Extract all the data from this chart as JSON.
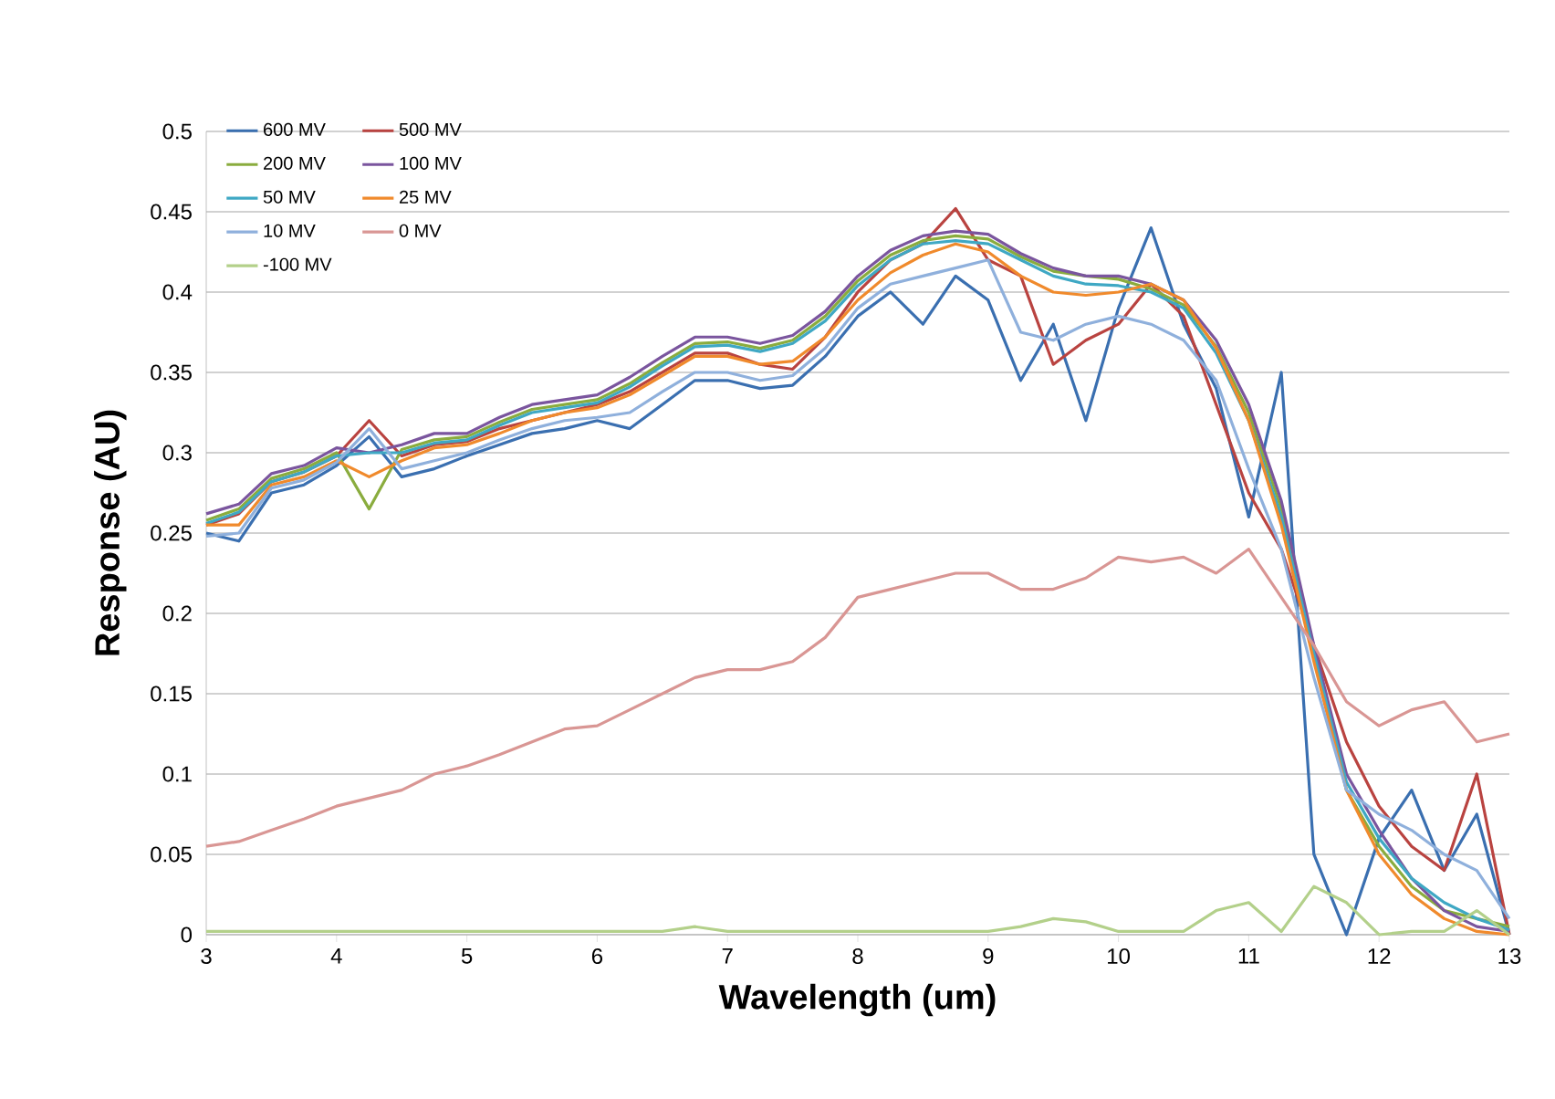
{
  "chart_data": {
    "type": "line",
    "xlabel": "Wavelength (um)",
    "ylabel": "Response (AU)",
    "x": [
      3.0,
      3.25,
      3.5,
      3.75,
      4.0,
      4.25,
      4.5,
      4.75,
      5.0,
      5.25,
      5.5,
      5.75,
      6.0,
      6.25,
      6.5,
      6.75,
      7.0,
      7.25,
      7.5,
      7.75,
      8.0,
      8.25,
      8.5,
      8.75,
      9.0,
      9.25,
      9.5,
      9.75,
      10.0,
      10.25,
      10.5,
      10.75,
      11.0,
      11.25,
      11.5,
      11.75,
      12.0,
      12.25,
      12.5,
      12.75,
      13.0
    ],
    "xlim": [
      3,
      13
    ],
    "xticks": [
      3,
      4,
      5,
      6,
      7,
      8,
      9,
      10,
      11,
      12,
      13
    ],
    "ylim": [
      0,
      0.5
    ],
    "yticks": [
      0,
      0.05,
      0.1,
      0.15,
      0.2,
      0.25,
      0.3,
      0.35,
      0.4,
      0.45,
      0.5
    ],
    "grid": "y",
    "legend": "top left",
    "marker": "none",
    "line_style": "solid",
    "series": [
      {
        "name": "600 MV",
        "color": "#3a6fb0",
        "values": [
          0.25,
          0.245,
          0.275,
          0.28,
          0.292,
          0.31,
          0.285,
          0.29,
          0.298,
          0.305,
          0.312,
          0.315,
          0.32,
          0.315,
          0.33,
          0.345,
          0.345,
          0.34,
          0.342,
          0.36,
          0.385,
          0.4,
          0.38,
          0.41,
          0.395,
          0.345,
          0.38,
          0.32,
          0.39,
          0.44,
          0.38,
          0.34,
          0.26,
          0.35,
          0.05,
          0.0,
          0.06,
          0.09,
          0.04,
          0.075,
          0.0
        ]
      },
      {
        "name": "500 MV",
        "color": "#b94340",
        "values": [
          0.255,
          0.262,
          0.282,
          0.288,
          0.298,
          0.32,
          0.298,
          0.305,
          0.307,
          0.315,
          0.32,
          0.325,
          0.33,
          0.338,
          0.35,
          0.362,
          0.362,
          0.355,
          0.352,
          0.372,
          0.4,
          0.42,
          0.43,
          0.452,
          0.42,
          0.41,
          0.355,
          0.37,
          0.38,
          0.405,
          0.385,
          0.33,
          0.275,
          0.24,
          0.18,
          0.12,
          0.08,
          0.055,
          0.04,
          0.1,
          0.0
        ]
      },
      {
        "name": "200 MV",
        "color": "#8aac3e",
        "values": [
          0.258,
          0.265,
          0.284,
          0.29,
          0.3,
          0.265,
          0.302,
          0.308,
          0.31,
          0.319,
          0.327,
          0.33,
          0.333,
          0.343,
          0.356,
          0.368,
          0.369,
          0.365,
          0.37,
          0.385,
          0.407,
          0.423,
          0.432,
          0.435,
          0.433,
          0.422,
          0.413,
          0.41,
          0.408,
          0.402,
          0.392,
          0.366,
          0.325,
          0.265,
          0.175,
          0.09,
          0.055,
          0.03,
          0.015,
          0.01,
          0.005
        ]
      },
      {
        "name": "100 MV",
        "color": "#7a559e",
        "values": [
          0.262,
          0.268,
          0.287,
          0.292,
          0.303,
          0.3,
          0.305,
          0.312,
          0.312,
          0.322,
          0.33,
          0.333,
          0.336,
          0.347,
          0.36,
          0.372,
          0.372,
          0.368,
          0.373,
          0.388,
          0.41,
          0.426,
          0.435,
          0.438,
          0.436,
          0.424,
          0.415,
          0.41,
          0.41,
          0.405,
          0.395,
          0.37,
          0.33,
          0.27,
          0.18,
          0.1,
          0.065,
          0.035,
          0.015,
          0.005,
          0.002
        ]
      },
      {
        "name": "50 MV",
        "color": "#3fa8c4",
        "values": [
          0.256,
          0.263,
          0.282,
          0.288,
          0.298,
          0.3,
          0.3,
          0.306,
          0.308,
          0.317,
          0.325,
          0.328,
          0.331,
          0.341,
          0.354,
          0.366,
          0.367,
          0.363,
          0.368,
          0.382,
          0.404,
          0.42,
          0.43,
          0.432,
          0.43,
          0.42,
          0.41,
          0.405,
          0.404,
          0.4,
          0.39,
          0.362,
          0.32,
          0.26,
          0.175,
          0.095,
          0.06,
          0.035,
          0.02,
          0.01,
          0.003
        ]
      },
      {
        "name": "25 MV",
        "color": "#f08a2c",
        "values": [
          0.255,
          0.255,
          0.28,
          0.285,
          0.295,
          0.285,
          0.295,
          0.303,
          0.305,
          0.312,
          0.32,
          0.325,
          0.328,
          0.336,
          0.348,
          0.36,
          0.36,
          0.355,
          0.357,
          0.372,
          0.395,
          0.412,
          0.423,
          0.43,
          0.425,
          0.41,
          0.4,
          0.398,
          0.4,
          0.405,
          0.395,
          0.365,
          0.32,
          0.255,
          0.17,
          0.09,
          0.05,
          0.025,
          0.01,
          0.002,
          0.0
        ]
      },
      {
        "name": "10 MV",
        "color": "#8fb0dc",
        "values": [
          0.248,
          0.25,
          0.278,
          0.283,
          0.294,
          0.315,
          0.29,
          0.295,
          0.3,
          0.308,
          0.315,
          0.32,
          0.322,
          0.325,
          0.338,
          0.35,
          0.35,
          0.345,
          0.348,
          0.365,
          0.39,
          0.405,
          0.41,
          0.415,
          0.42,
          0.375,
          0.37,
          0.38,
          0.385,
          0.38,
          0.37,
          0.345,
          0.29,
          0.24,
          0.16,
          0.09,
          0.075,
          0.065,
          0.05,
          0.04,
          0.01
        ]
      },
      {
        "name": "0 MV",
        "color": "#d99694",
        "values": [
          0.055,
          0.058,
          0.065,
          0.072,
          0.08,
          0.085,
          0.09,
          0.1,
          0.105,
          0.112,
          0.12,
          0.128,
          0.13,
          0.14,
          0.15,
          0.16,
          0.165,
          0.165,
          0.17,
          0.185,
          0.21,
          0.215,
          0.22,
          0.225,
          0.225,
          0.215,
          0.215,
          0.222,
          0.235,
          0.232,
          0.235,
          0.225,
          0.24,
          0.21,
          0.18,
          0.145,
          0.13,
          0.14,
          0.145,
          0.12,
          0.125
        ]
      },
      {
        "name": "-100 MV",
        "color": "#b3d08a",
        "values": [
          0.002,
          0.002,
          0.002,
          0.002,
          0.002,
          0.002,
          0.002,
          0.002,
          0.002,
          0.002,
          0.002,
          0.002,
          0.002,
          0.002,
          0.002,
          0.005,
          0.002,
          0.002,
          0.002,
          0.002,
          0.002,
          0.002,
          0.002,
          0.002,
          0.002,
          0.005,
          0.01,
          0.008,
          0.002,
          0.002,
          0.002,
          0.015,
          0.02,
          0.002,
          0.03,
          0.02,
          0.0,
          0.002,
          0.002,
          0.015,
          0.0
        ]
      }
    ]
  }
}
